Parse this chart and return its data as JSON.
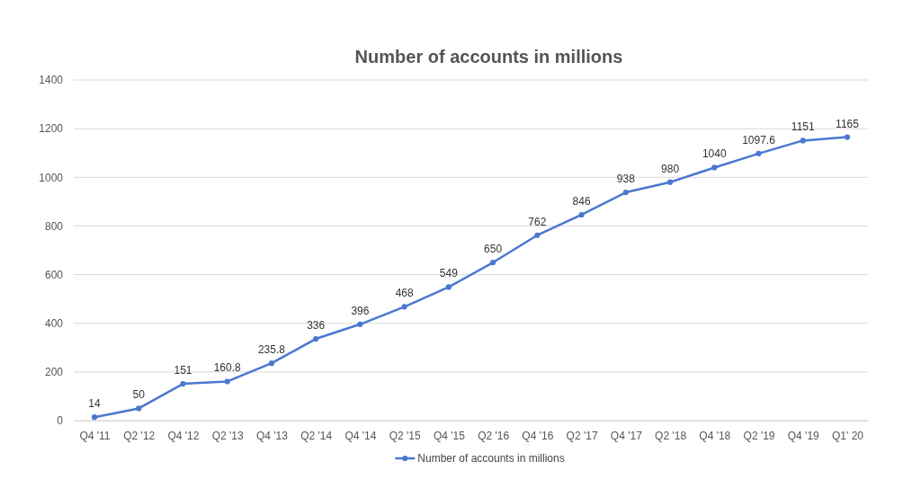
{
  "chart_data": {
    "type": "line",
    "title": "Number of accounts in millions",
    "categories": [
      "Q4 '11",
      "Q2 '12",
      "Q4 '12",
      "Q2 '13",
      "Q4 '13",
      "Q2 '14",
      "Q4 '14",
      "Q2 '15",
      "Q4 '15",
      "Q2 '16",
      "Q4 '16",
      "Q2 '17",
      "Q4 '17",
      "Q2 '18",
      "Q4 '18",
      "Q2 '19",
      "Q4 '19",
      "Q1' 20"
    ],
    "series": [
      {
        "name": "Number of accounts in millions",
        "color": "#4a78d0",
        "values": [
          14,
          50,
          151,
          160.8,
          235.8,
          336,
          396,
          468,
          549,
          650,
          762,
          846,
          938,
          980,
          1040,
          1097.6,
          1151,
          1165
        ]
      }
    ],
    "ylim": [
      0,
      1400
    ],
    "yticks": [
      0,
      200,
      400,
      600,
      800,
      1000,
      1200,
      1400
    ],
    "grid": "y",
    "legend": "bottom",
    "marker": "circle",
    "line_style": "solid",
    "data_labels": true
  }
}
